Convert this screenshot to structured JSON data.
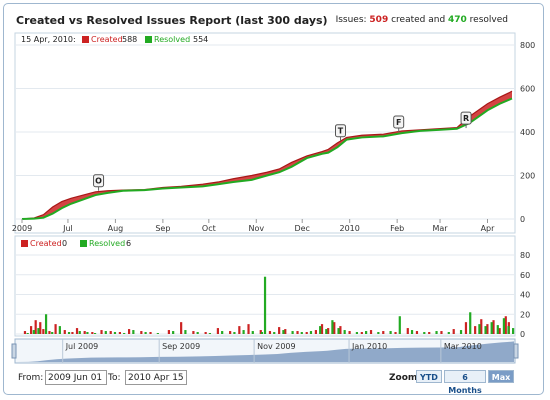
{
  "header": {
    "title": "Created vs Resolved Issues Report (last 300 days)",
    "issues_prefix": "Issues: ",
    "created_count": "509",
    "created_word": " created and ",
    "resolved_count": "470",
    "resolved_word": " resolved"
  },
  "top_legend": {
    "date": "15 Apr, 2010:",
    "created_label": "Created",
    "created_value": "588",
    "resolved_label": "Resolved",
    "resolved_value": "554"
  },
  "bottom_legend": {
    "created_label": "Created",
    "created_value": "0",
    "resolved_label": "Resolved",
    "resolved_value": "6"
  },
  "colors": {
    "created": "#cc2222",
    "resolved": "#22aa22",
    "nav_fill": "#6f8fb8"
  },
  "controls": {
    "from_label": "From:",
    "from_value": "2009 Jun 01",
    "to_label": "To:",
    "to_value": "2010 Apr 15",
    "zoom_label": "Zoom:",
    "zoom_options": [
      "YTD",
      "6 Months",
      "Max"
    ],
    "zoom_selected": "Max"
  },
  "chart_data": [
    {
      "type": "area",
      "title": "",
      "x_ticks": [
        "2009",
        "Jul",
        "Aug",
        "Sep",
        "Oct",
        "Nov",
        "Dec",
        "2010",
        "Feb",
        "Mar",
        "Apr"
      ],
      "x_tick_days": [
        0,
        30,
        61,
        92,
        122,
        153,
        183,
        214,
        245,
        273,
        304
      ],
      "y_ticks": [
        0,
        200,
        400,
        600,
        800
      ],
      "ylim": [
        0,
        800
      ],
      "series": [
        {
          "name": "Created",
          "points": [
            [
              0,
              0
            ],
            [
              8,
              5
            ],
            [
              14,
              20
            ],
            [
              20,
              55
            ],
            [
              26,
              80
            ],
            [
              32,
              95
            ],
            [
              40,
              110
            ],
            [
              48,
              125
            ],
            [
              56,
              130
            ],
            [
              66,
              133
            ],
            [
              80,
              135
            ],
            [
              92,
              145
            ],
            [
              104,
              150
            ],
            [
              118,
              160
            ],
            [
              128,
              170
            ],
            [
              138,
              185
            ],
            [
              150,
              200
            ],
            [
              160,
              215
            ],
            [
              168,
              230
            ],
            [
              176,
              260
            ],
            [
              186,
              290
            ],
            [
              196,
              310
            ],
            [
              200,
              320
            ],
            [
              206,
              350
            ],
            [
              212,
              375
            ],
            [
              222,
              385
            ],
            [
              236,
              390
            ],
            [
              248,
              405
            ],
            [
              260,
              410
            ],
            [
              272,
              415
            ],
            [
              284,
              420
            ],
            [
              292,
              470
            ],
            [
              298,
              500
            ],
            [
              304,
              530
            ],
            [
              312,
              560
            ],
            [
              318,
              580
            ],
            [
              320,
              588
            ]
          ]
        },
        {
          "name": "Resolved",
          "points": [
            [
              0,
              0
            ],
            [
              8,
              2
            ],
            [
              14,
              6
            ],
            [
              20,
              25
            ],
            [
              26,
              50
            ],
            [
              32,
              70
            ],
            [
              40,
              90
            ],
            [
              48,
              110
            ],
            [
              56,
              120
            ],
            [
              66,
              130
            ],
            [
              80,
              133
            ],
            [
              92,
              140
            ],
            [
              104,
              145
            ],
            [
              118,
              150
            ],
            [
              128,
              160
            ],
            [
              138,
              170
            ],
            [
              150,
              180
            ],
            [
              160,
              200
            ],
            [
              168,
              215
            ],
            [
              176,
              240
            ],
            [
              186,
              280
            ],
            [
              196,
              300
            ],
            [
              200,
              305
            ],
            [
              206,
              330
            ],
            [
              212,
              365
            ],
            [
              222,
              375
            ],
            [
              236,
              380
            ],
            [
              248,
              395
            ],
            [
              260,
              405
            ],
            [
              272,
              410
            ],
            [
              284,
              415
            ],
            [
              292,
              440
            ],
            [
              298,
              470
            ],
            [
              304,
              500
            ],
            [
              312,
              530
            ],
            [
              318,
              548
            ],
            [
              320,
              554
            ]
          ]
        }
      ],
      "flags": [
        {
          "label": "O",
          "day": 50,
          "value": 130
        },
        {
          "label": "T",
          "day": 208,
          "value": 360
        },
        {
          "label": "F",
          "day": 246,
          "value": 400
        },
        {
          "label": "R",
          "day": 290,
          "value": 418
        }
      ]
    },
    {
      "type": "bar",
      "y_ticks": [
        0,
        20,
        40,
        60,
        80
      ],
      "ylim": [
        0,
        80
      ],
      "series": [
        {
          "name": "Created",
          "points": [
            [
              2,
              3
            ],
            [
              6,
              8
            ],
            [
              9,
              14
            ],
            [
              12,
              12
            ],
            [
              14,
              5
            ],
            [
              18,
              3
            ],
            [
              22,
              10
            ],
            [
              28,
              4
            ],
            [
              33,
              2
            ],
            [
              36,
              6
            ],
            [
              41,
              3
            ],
            [
              46,
              2
            ],
            [
              52,
              4
            ],
            [
              58,
              3
            ],
            [
              64,
              2
            ],
            [
              70,
              5
            ],
            [
              78,
              3
            ],
            [
              84,
              2
            ],
            [
              96,
              4
            ],
            [
              104,
              12
            ],
            [
              112,
              3
            ],
            [
              120,
              2
            ],
            [
              128,
              6
            ],
            [
              136,
              3
            ],
            [
              142,
              8
            ],
            [
              148,
              10
            ],
            [
              156,
              4
            ],
            [
              162,
              3
            ],
            [
              168,
              7
            ],
            [
              172,
              5
            ],
            [
              180,
              3
            ],
            [
              186,
              2
            ],
            [
              192,
              4
            ],
            [
              196,
              10
            ],
            [
              200,
              6
            ],
            [
              204,
              12
            ],
            [
              208,
              8
            ],
            [
              214,
              3
            ],
            [
              222,
              2
            ],
            [
              228,
              4
            ],
            [
              236,
              3
            ],
            [
              244,
              2
            ],
            [
              252,
              6
            ],
            [
              258,
              3
            ],
            [
              266,
              2
            ],
            [
              274,
              3
            ],
            [
              282,
              5
            ],
            [
              290,
              12
            ],
            [
              296,
              8
            ],
            [
              300,
              15
            ],
            [
              304,
              10
            ],
            [
              308,
              14
            ],
            [
              312,
              6
            ],
            [
              316,
              18
            ],
            [
              318,
              12
            ]
          ]
        },
        {
          "name": "Resolved",
          "points": [
            [
              3,
              1
            ],
            [
              7,
              4
            ],
            [
              10,
              6
            ],
            [
              15,
              20
            ],
            [
              19,
              2
            ],
            [
              24,
              8
            ],
            [
              30,
              2
            ],
            [
              37,
              3
            ],
            [
              42,
              2
            ],
            [
              47,
              1
            ],
            [
              54,
              3
            ],
            [
              60,
              2
            ],
            [
              66,
              1
            ],
            [
              72,
              4
            ],
            [
              80,
              2
            ],
            [
              88,
              1
            ],
            [
              98,
              3
            ],
            [
              106,
              4
            ],
            [
              114,
              2
            ],
            [
              122,
              1
            ],
            [
              130,
              3
            ],
            [
              138,
              2
            ],
            [
              144,
              4
            ],
            [
              150,
              3
            ],
            [
              156,
              2
            ],
            [
              158,
              58
            ],
            [
              164,
              2
            ],
            [
              170,
              4
            ],
            [
              176,
              3
            ],
            [
              182,
              2
            ],
            [
              188,
              3
            ],
            [
              194,
              8
            ],
            [
              198,
              5
            ],
            [
              202,
              14
            ],
            [
              206,
              6
            ],
            [
              210,
              4
            ],
            [
              218,
              2
            ],
            [
              224,
              3
            ],
            [
              232,
              2
            ],
            [
              240,
              3
            ],
            [
              246,
              18
            ],
            [
              254,
              4
            ],
            [
              262,
              2
            ],
            [
              270,
              3
            ],
            [
              278,
              2
            ],
            [
              286,
              4
            ],
            [
              292,
              22
            ],
            [
              298,
              10
            ],
            [
              302,
              8
            ],
            [
              306,
              12
            ],
            [
              310,
              9
            ],
            [
              314,
              16
            ],
            [
              317,
              8
            ],
            [
              320,
              6
            ]
          ]
        }
      ]
    }
  ],
  "navigator": {
    "labels": [
      "Jul 2009",
      "Sep 2009",
      "Nov 2009",
      "Jan 2010",
      "Mar 2010"
    ],
    "label_days": [
      30,
      92,
      153,
      214,
      273
    ]
  }
}
